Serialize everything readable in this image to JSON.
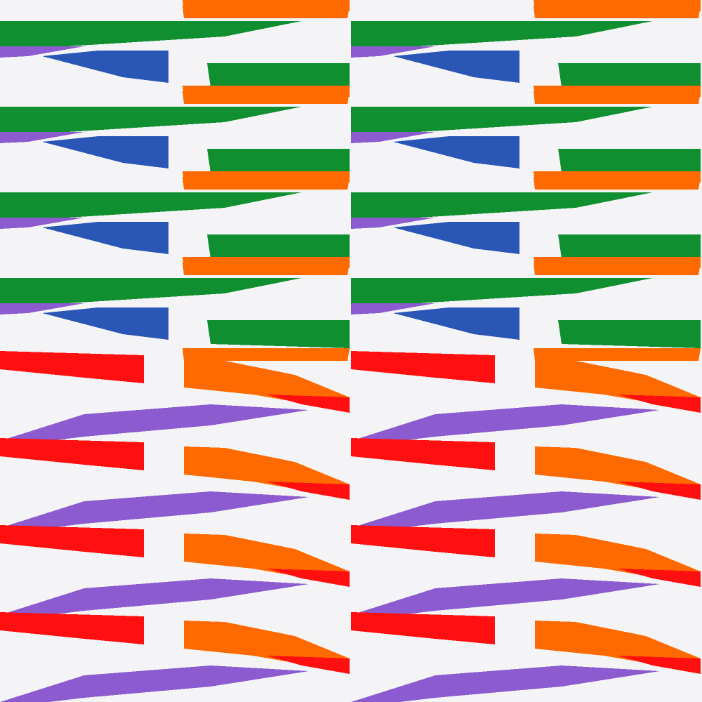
{
  "pattern": {
    "background": "#f4f4f6",
    "colors": {
      "green": "#0f8f2f",
      "blue": "#2a56b5",
      "orange": "#ff6a00",
      "red": "#ff0f0f",
      "purple": "#8b5bcf"
    },
    "description_free": true
  }
}
